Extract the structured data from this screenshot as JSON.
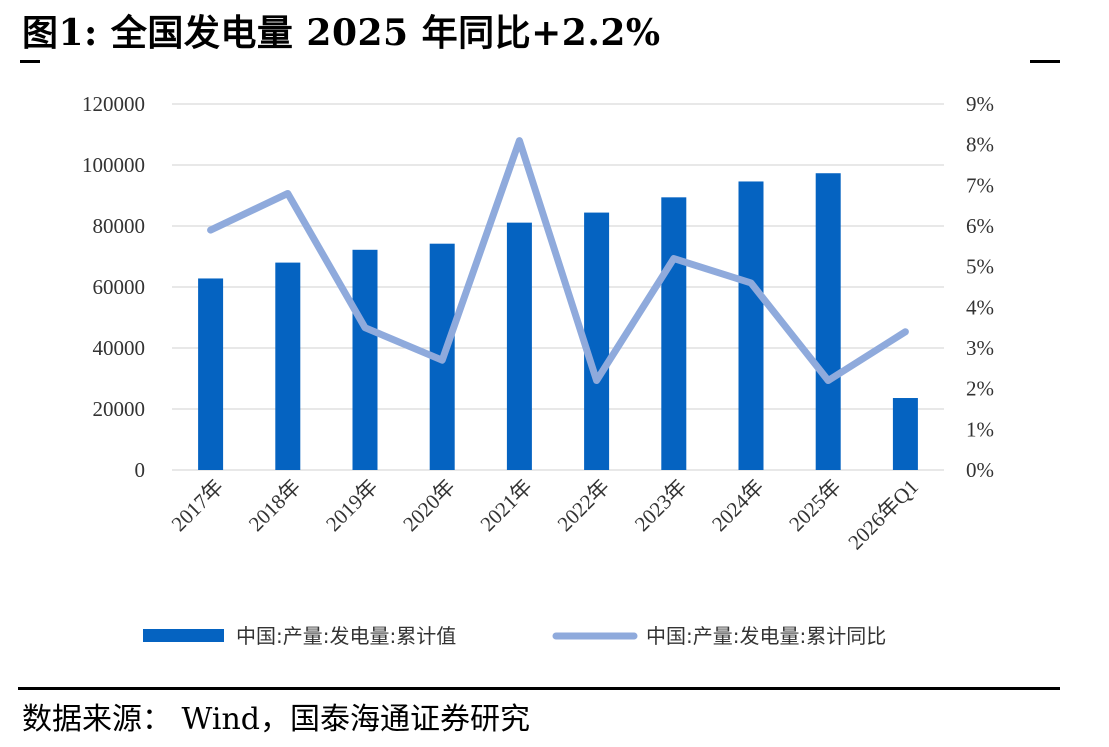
{
  "header": {
    "title": "图1:  全国发电量 2025 年同比+2.2%"
  },
  "footer": {
    "source": "数据来源： Wind，国泰海通证券研究"
  },
  "chart_data": {
    "type": "bar",
    "categories": [
      "2017年",
      "2018年",
      "2019年",
      "2020年",
      "2021年",
      "2022年",
      "2023年",
      "2024年",
      "2025年",
      "2026年Q1"
    ],
    "series": [
      {
        "name": "中国:产量:发电量:累计值",
        "type": "bar",
        "axis": "left",
        "color": "#0563C1",
        "values": [
          62800,
          68000,
          72200,
          74200,
          81100,
          84400,
          89400,
          94600,
          97300,
          23600
        ]
      },
      {
        "name": "中国:产量:发电量:累计同比",
        "type": "line",
        "axis": "right",
        "color": "#8FAADC",
        "values": [
          5.9,
          6.8,
          3.5,
          2.7,
          8.1,
          2.2,
          5.2,
          4.6,
          2.2,
          3.4
        ]
      }
    ],
    "y_left": {
      "lim": [
        0,
        120000
      ],
      "ticks": [
        "0",
        "20000",
        "40000",
        "60000",
        "80000",
        "100000",
        "120000"
      ]
    },
    "y_right": {
      "lim": [
        0,
        9
      ],
      "ticks": [
        "0%",
        "1%",
        "2%",
        "3%",
        "4%",
        "5%",
        "6%",
        "7%",
        "8%",
        "9%"
      ]
    },
    "grid": true,
    "legend": "bottom"
  }
}
